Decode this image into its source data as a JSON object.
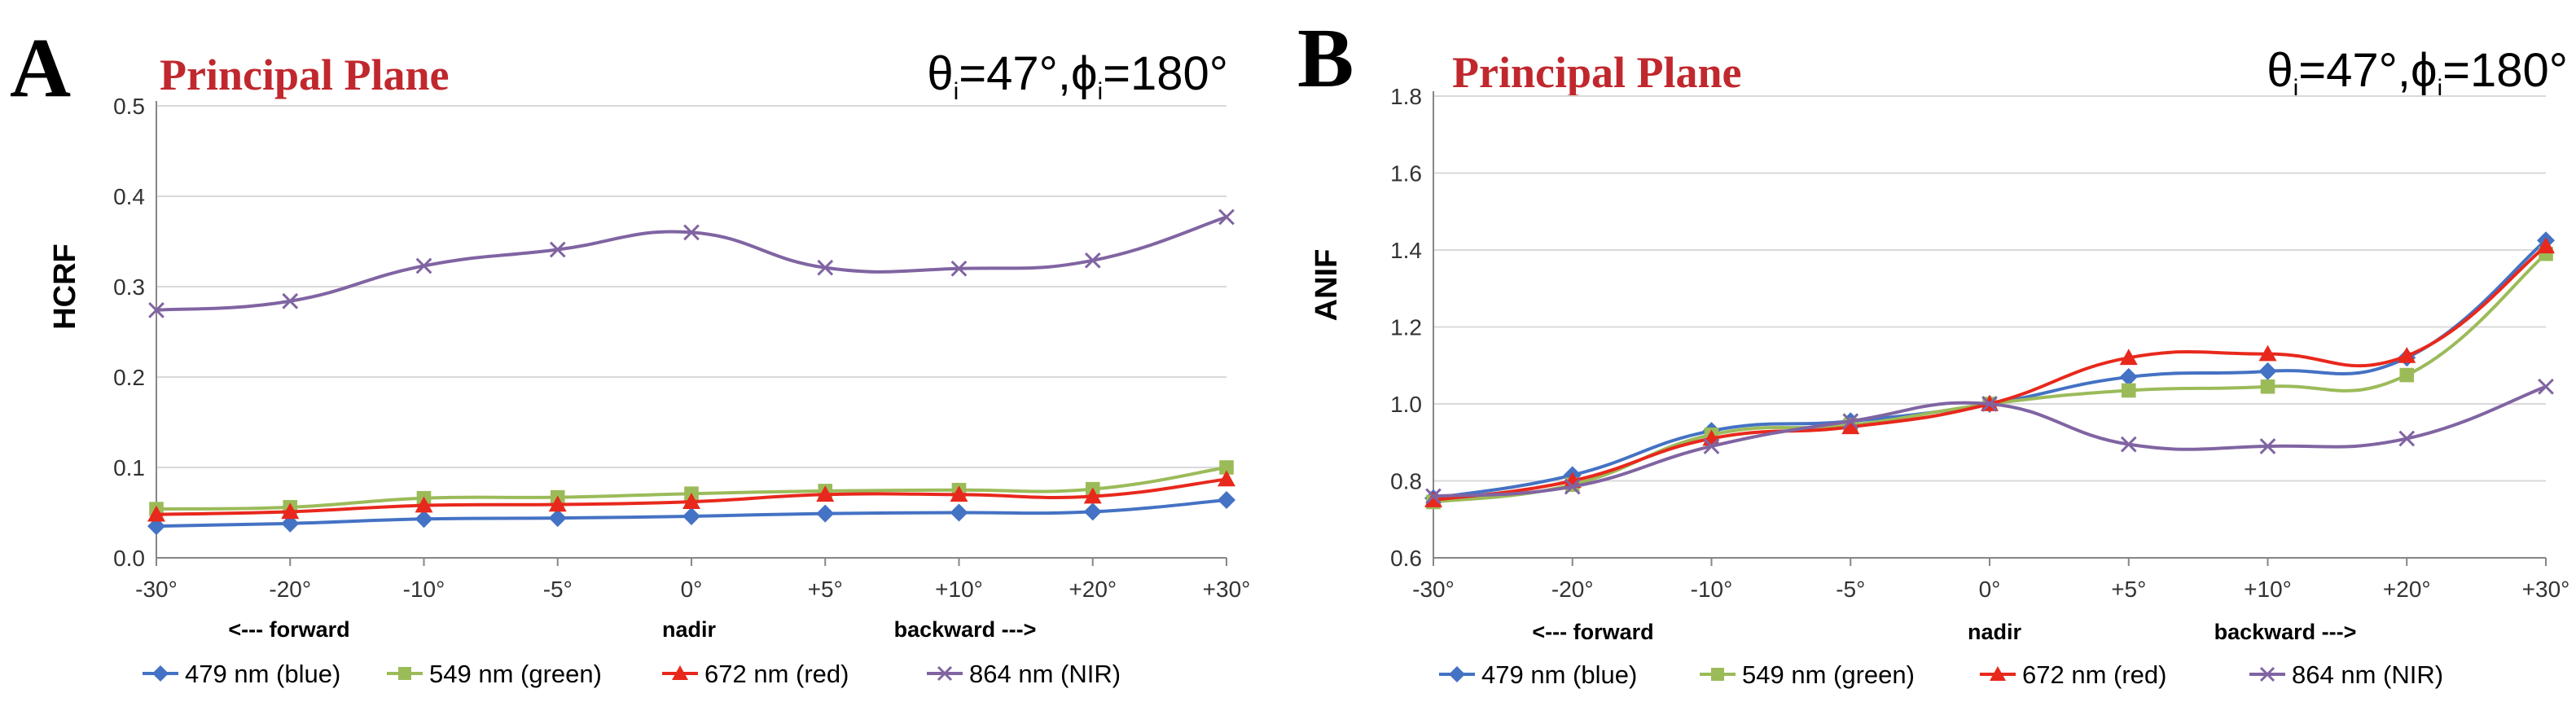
{
  "chart_data": [
    {
      "type": "line",
      "panel": "A",
      "title": "Principal Plane",
      "angle_label": {
        "theta": "θ",
        "theta_sub": "i",
        "theta_val": "=47°,",
        "phi": "ϕ",
        "phi_sub": "i",
        "phi_val": "=180°"
      },
      "ylabel": "HCRF",
      "xlabel": "",
      "categories": [
        "-30°",
        "-20°",
        "-10°",
        "-5°",
        "0°",
        "+5°",
        "+10°",
        "+20°",
        "+30°"
      ],
      "yticks": [
        "0.0",
        "0.1",
        "0.2",
        "0.3",
        "0.4",
        "0.5"
      ],
      "ylim": [
        0,
        0.5
      ],
      "direction_labels": {
        "forward": "<--- forward",
        "nadir": "nadir",
        "backward": "backward --->"
      },
      "series": [
        {
          "name": "479 nm (blue)",
          "color": "#4472c4",
          "marker": "diamond",
          "values": [
            0.035,
            0.038,
            0.043,
            0.044,
            0.046,
            0.049,
            0.05,
            0.051,
            0.064
          ]
        },
        {
          "name": "549 nm (green)",
          "color": "#9bbb59",
          "marker": "square",
          "values": [
            0.054,
            0.056,
            0.066,
            0.067,
            0.071,
            0.074,
            0.075,
            0.076,
            0.1
          ]
        },
        {
          "name": "672 nm (red)",
          "color": "#e8281c",
          "marker": "triangle",
          "values": [
            0.048,
            0.051,
            0.058,
            0.059,
            0.062,
            0.07,
            0.07,
            0.068,
            0.087
          ]
        },
        {
          "name": "864 nm (NIR)",
          "color": "#8064a2",
          "marker": "x",
          "values": [
            0.274,
            0.284,
            0.323,
            0.341,
            0.36,
            0.321,
            0.32,
            0.329,
            0.377
          ]
        }
      ]
    },
    {
      "type": "line",
      "panel": "B",
      "title": "Principal Plane",
      "angle_label": {
        "theta": "θ",
        "theta_sub": "i",
        "theta_val": "=47°,",
        "phi": "ϕ",
        "phi_sub": "i",
        "phi_val": "=180°"
      },
      "ylabel": "ANIF",
      "xlabel": "",
      "categories": [
        "-30°",
        "-20°",
        "-10°",
        "-5°",
        "0°",
        "+5°",
        "+10°",
        "+20°",
        "+30°"
      ],
      "yticks": [
        "0.6",
        "0.8",
        "1.0",
        "1.2",
        "1.4",
        "1.6",
        "1.8"
      ],
      "ylim": [
        0.6,
        1.8
      ],
      "direction_labels": {
        "forward": "<--- forward",
        "nadir": "nadir",
        "backward": "backward --->"
      },
      "series": [
        {
          "name": "479 nm (blue)",
          "color": "#4472c4",
          "marker": "diamond",
          "values": [
            0.755,
            0.815,
            0.93,
            0.955,
            1.0,
            1.07,
            1.085,
            1.12,
            1.425
          ]
        },
        {
          "name": "549 nm (green)",
          "color": "#9bbb59",
          "marker": "square",
          "values": [
            0.745,
            0.79,
            0.92,
            0.945,
            1.0,
            1.035,
            1.045,
            1.075,
            1.39
          ]
        },
        {
          "name": "672 nm (red)",
          "color": "#e8281c",
          "marker": "triangle",
          "values": [
            0.75,
            0.8,
            0.91,
            0.94,
            1.0,
            1.12,
            1.13,
            1.125,
            1.41
          ]
        },
        {
          "name": "864 nm (NIR)",
          "color": "#8064a2",
          "marker": "x",
          "values": [
            0.76,
            0.785,
            0.89,
            0.955,
            1.0,
            0.895,
            0.89,
            0.91,
            1.045
          ]
        }
      ]
    }
  ]
}
